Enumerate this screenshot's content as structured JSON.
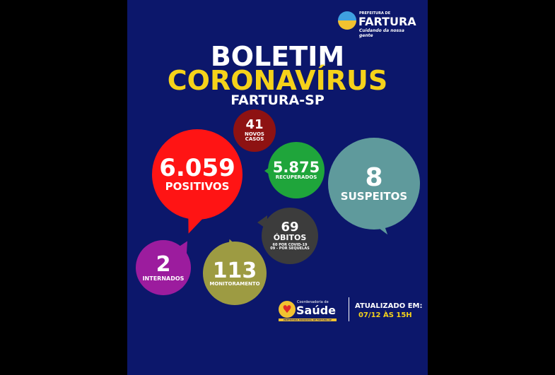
{
  "logo": {
    "line1": "PREFEITURA DE",
    "line2": "FARTURA",
    "line3": "Cuidando da nossa gente"
  },
  "title": {
    "line1": "BOLETIM",
    "line2": "CORONAVÍRUS",
    "line3": "FARTURA-SP"
  },
  "stats": {
    "novos": {
      "value": "41",
      "label": "NOVOS CASOS"
    },
    "positivos": {
      "value": "6.059",
      "label": "POSITIVOS"
    },
    "recuperados": {
      "value": "5.875",
      "label": "RECUPERADOS"
    },
    "suspeitos": {
      "value": "8",
      "label": "SUSPEITOS"
    },
    "obitos": {
      "value": "69",
      "label": "ÓBITOS",
      "detail1": "60 POR COVID-19",
      "detail2": "09 - POR SEQUELAS"
    },
    "internados": {
      "value": "2",
      "label": "INTERNADOS"
    },
    "monitoramento": {
      "value": "113",
      "label": "MONITORAMENTO"
    }
  },
  "footer": {
    "logo_small": "Coordenadoria de",
    "logo_big": "Saúde",
    "logo_strip": "PREFEITURA MUNICIPAL DE FARTURA-SP",
    "updated_label": "ATUALIZADO EM:",
    "updated_value": "07/12 ÀS 15H"
  },
  "colors": {
    "background": "#0c176b",
    "yellow": "#f5d21a",
    "positivos": "#ff1414",
    "novos": "#8e1212",
    "recuperados": "#1fa53b",
    "suspeitos": "#5f9a9c",
    "obitos": "#3c3c3c",
    "internados": "#9c1c9e",
    "monitoramento": "#9d9b42"
  }
}
